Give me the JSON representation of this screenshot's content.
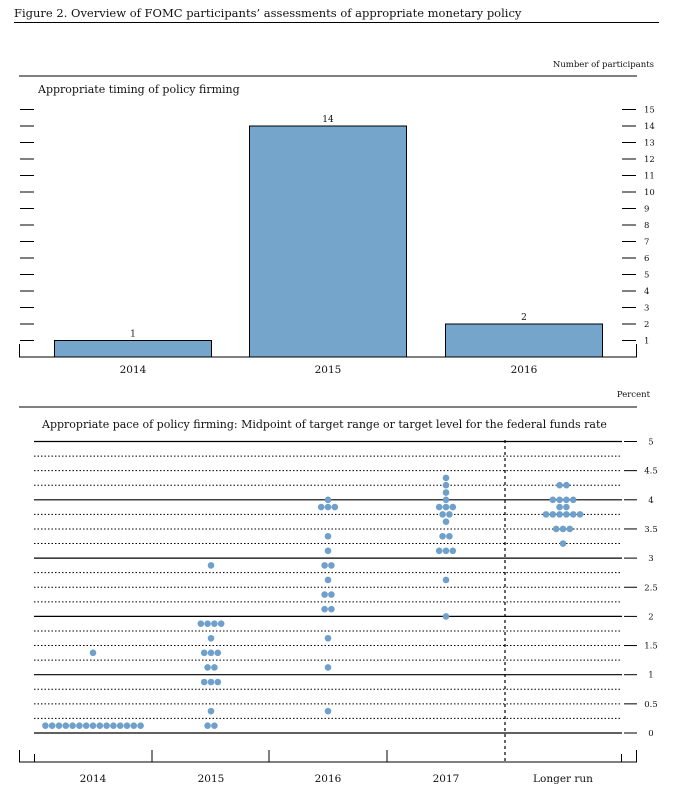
{
  "figure_title": "Figure 2. Overview of FOMC participants’ assessments of appropriate monetary policy",
  "colors": {
    "bar": "#76a5cc",
    "dot": "#6fa0cb",
    "line": "#000000"
  },
  "chart_data": [
    {
      "type": "bar",
      "title": "Appropriate timing of policy firming",
      "ylabel": "Number of participants",
      "categories": [
        "2014",
        "2015",
        "2016"
      ],
      "values": [
        1,
        14,
        2
      ],
      "data_labels": [
        "1",
        "14",
        "2"
      ],
      "ylim": [
        0,
        15
      ],
      "yticks": [
        1,
        2,
        3,
        4,
        5,
        6,
        7,
        8,
        9,
        10,
        11,
        12,
        13,
        14,
        15
      ]
    },
    {
      "type": "scatter",
      "title": "Appropriate pace of policy firming: Midpoint of target range or target level for the federal funds rate",
      "ylabel": "Percent",
      "categories": [
        "2014",
        "2015",
        "2016",
        "2017",
        "Longer run"
      ],
      "ylim": [
        0,
        5
      ],
      "yticks": [
        "0",
        "0.5",
        "1",
        "1.5",
        "2",
        "2.5",
        "3",
        "3.5",
        "4",
        "4.5",
        "5"
      ],
      "series": [
        {
          "name": "2014",
          "points": [
            {
              "y": 0.125,
              "count": 15
            },
            {
              "y": 1.375,
              "count": 1
            }
          ]
        },
        {
          "name": "2015",
          "points": [
            {
              "y": 0.125,
              "count": 2
            },
            {
              "y": 0.375,
              "count": 1
            },
            {
              "y": 0.875,
              "count": 3
            },
            {
              "y": 1.125,
              "count": 2
            },
            {
              "y": 1.375,
              "count": 3
            },
            {
              "y": 1.625,
              "count": 1
            },
            {
              "y": 1.875,
              "count": 4
            },
            {
              "y": 2.875,
              "count": 1
            }
          ]
        },
        {
          "name": "2016",
          "points": [
            {
              "y": 0.375,
              "count": 1
            },
            {
              "y": 1.125,
              "count": 1
            },
            {
              "y": 1.625,
              "count": 1
            },
            {
              "y": 2.125,
              "count": 2
            },
            {
              "y": 2.375,
              "count": 2
            },
            {
              "y": 2.625,
              "count": 1
            },
            {
              "y": 2.875,
              "count": 2
            },
            {
              "y": 3.125,
              "count": 1
            },
            {
              "y": 3.375,
              "count": 1
            },
            {
              "y": 3.875,
              "count": 3
            },
            {
              "y": 4.0,
              "count": 1
            }
          ]
        },
        {
          "name": "2017",
          "points": [
            {
              "y": 2.0,
              "count": 1
            },
            {
              "y": 2.625,
              "count": 1
            },
            {
              "y": 3.125,
              "count": 3
            },
            {
              "y": 3.375,
              "count": 2
            },
            {
              "y": 3.625,
              "count": 1
            },
            {
              "y": 3.75,
              "count": 2
            },
            {
              "y": 3.875,
              "count": 3
            },
            {
              "y": 4.0,
              "count": 1
            },
            {
              "y": 4.125,
              "count": 1
            },
            {
              "y": 4.25,
              "count": 1
            },
            {
              "y": 4.375,
              "count": 1
            }
          ]
        },
        {
          "name": "Longer run",
          "points": [
            {
              "y": 3.25,
              "count": 1
            },
            {
              "y": 3.5,
              "count": 3
            },
            {
              "y": 3.75,
              "count": 6
            },
            {
              "y": 3.875,
              "count": 2
            },
            {
              "y": 4.0,
              "count": 4
            },
            {
              "y": 4.25,
              "count": 2
            }
          ]
        }
      ]
    }
  ]
}
